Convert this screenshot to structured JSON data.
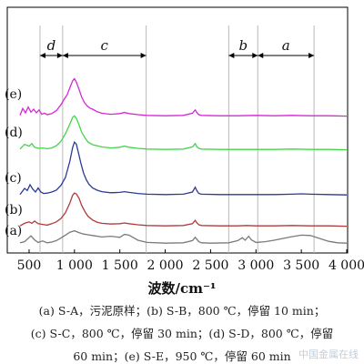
{
  "chart_data": {
    "type": "line",
    "xlabel": "波数/cm⁻¹",
    "xlim": [
      400,
      4000
    ],
    "x_ticks": [
      500,
      1000,
      1500,
      2000,
      2500,
      3000,
      3500,
      4000
    ],
    "x_tick_labels": [
      "500",
      "1 000",
      "1 500",
      "2 000",
      "2 500",
      "3 000",
      "3 500",
      "4 000"
    ],
    "ylabel": "",
    "grid": false,
    "region_labels": [
      "d",
      "c",
      "b",
      "a"
    ],
    "region_boundaries": [
      620,
      870,
      1790,
      2700,
      3020,
      3640
    ],
    "region_label_font": "italic",
    "series": [
      {
        "name": "(a)",
        "color": "#7a7a7a",
        "x": [
          400,
          450,
          480,
          520,
          560,
          600,
          650,
          700,
          750,
          800,
          850,
          900,
          950,
          1000,
          1050,
          1100,
          1150,
          1200,
          1300,
          1400,
          1500,
          1550,
          1600,
          1650,
          1700,
          1800,
          2000,
          2200,
          2300,
          2330,
          2350,
          2370,
          2400,
          2500,
          2700,
          2800,
          2850,
          2880,
          2920,
          2950,
          3000,
          3100,
          3200,
          3300,
          3400,
          3500,
          3600,
          3700,
          3800,
          3900,
          4000
        ],
        "y": [
          0.3,
          0.6,
          1.3,
          2.2,
          1.1,
          0.4,
          0.8,
          0.3,
          0.5,
          0.9,
          1.6,
          2.4,
          3.2,
          3.6,
          3.1,
          2.7,
          2.5,
          2.3,
          1.9,
          2.1,
          1.8,
          2.6,
          2.4,
          1.7,
          1.0,
          0.4,
          0.2,
          0.3,
          0.9,
          1.8,
          1.2,
          0.6,
          0.3,
          0.2,
          0.3,
          0.9,
          1.7,
          1.0,
          2.1,
          1.1,
          0.4,
          0.6,
          1.0,
          1.5,
          2.0,
          2.4,
          2.3,
          1.5,
          0.7,
          0.3,
          0.2
        ]
      },
      {
        "name": "(b)",
        "color": "#b23a3a",
        "x": [
          400,
          450,
          500,
          530,
          560,
          600,
          650,
          700,
          750,
          800,
          850,
          900,
          950,
          980,
          1000,
          1020,
          1050,
          1080,
          1120,
          1150,
          1200,
          1250,
          1300,
          1400,
          1500,
          1550,
          1600,
          1700,
          1800,
          2000,
          2200,
          2300,
          2330,
          2350,
          2370,
          2400,
          2600,
          2800,
          2900,
          3000,
          3200,
          3400,
          3600,
          3800,
          4000
        ],
        "y": [
          0.2,
          0.9,
          1.3,
          0.9,
          1.5,
          0.8,
          0.6,
          0.4,
          0.8,
          1.3,
          2.2,
          3.8,
          6.5,
          8.6,
          9.2,
          9.0,
          7.8,
          5.8,
          3.9,
          2.8,
          1.8,
          1.2,
          0.9,
          0.7,
          0.8,
          1.0,
          0.8,
          0.5,
          0.3,
          0.2,
          0.3,
          0.8,
          1.7,
          1.0,
          0.5,
          0.3,
          0.2,
          0.2,
          0.3,
          0.2,
          0.2,
          0.3,
          0.2,
          0.2,
          0.1
        ]
      },
      {
        "name": "(c)",
        "color": "#2b3a96",
        "x": [
          400,
          450,
          480,
          510,
          540,
          570,
          600,
          630,
          660,
          700,
          750,
          800,
          850,
          900,
          950,
          980,
          1000,
          1020,
          1040,
          1070,
          1100,
          1130,
          1160,
          1200,
          1250,
          1300,
          1400,
          1500,
          1550,
          1600,
          1700,
          1800,
          2000,
          2200,
          2300,
          2330,
          2350,
          2370,
          2400,
          2600,
          2800,
          3000,
          3200,
          3400,
          3500,
          3600,
          3800,
          4000
        ],
        "y": [
          0.3,
          2.0,
          1.4,
          3.0,
          1.8,
          1.0,
          2.1,
          1.0,
          0.6,
          0.7,
          1.0,
          1.5,
          2.8,
          5.0,
          9.5,
          13.2,
          14.7,
          14.2,
          12.2,
          9.0,
          6.2,
          4.4,
          3.1,
          2.1,
          1.5,
          1.1,
          0.8,
          0.9,
          1.1,
          0.9,
          0.6,
          0.4,
          0.3,
          0.4,
          1.0,
          2.3,
          1.3,
          0.6,
          0.4,
          0.3,
          0.3,
          0.3,
          0.3,
          0.4,
          0.5,
          0.4,
          0.3,
          0.2
        ]
      },
      {
        "name": "(d)",
        "color": "#43d64a",
        "x": [
          400,
          450,
          500,
          530,
          560,
          600,
          650,
          700,
          750,
          800,
          850,
          900,
          950,
          980,
          1000,
          1020,
          1050,
          1080,
          1120,
          1150,
          1200,
          1300,
          1400,
          1500,
          1550,
          1600,
          1700,
          1800,
          2000,
          2200,
          2300,
          2330,
          2350,
          2370,
          2400,
          2600,
          2800,
          3000,
          3200,
          3400,
          3600,
          3800,
          4000
        ],
        "y": [
          0.3,
          1.6,
          1.1,
          1.8,
          0.8,
          0.5,
          0.6,
          0.4,
          0.6,
          1.2,
          2.4,
          4.5,
          7.2,
          9.0,
          9.4,
          8.8,
          7.0,
          4.9,
          3.2,
          2.2,
          1.5,
          0.9,
          0.6,
          0.8,
          1.1,
          0.8,
          0.5,
          0.3,
          0.2,
          0.3,
          0.9,
          1.8,
          0.9,
          0.5,
          0.3,
          0.2,
          0.2,
          0.2,
          0.2,
          0.3,
          0.2,
          0.2,
          0.1
        ]
      },
      {
        "name": "(e)",
        "color": "#d42ad4",
        "x": [
          400,
          430,
          460,
          490,
          520,
          550,
          580,
          610,
          640,
          670,
          700,
          750,
          800,
          850,
          880,
          920,
          950,
          980,
          1000,
          1020,
          1050,
          1080,
          1110,
          1140,
          1170,
          1200,
          1250,
          1300,
          1400,
          1500,
          1550,
          1600,
          1700,
          1800,
          2000,
          2200,
          2300,
          2330,
          2350,
          2370,
          2400,
          2600,
          2800,
          3000,
          3200,
          3400,
          3600,
          3800,
          4000
        ],
        "y": [
          0.3,
          2.2,
          1.0,
          2.6,
          1.2,
          2.0,
          1.0,
          1.8,
          0.6,
          0.9,
          0.5,
          0.8,
          1.6,
          3.2,
          4.5,
          6.0,
          7.9,
          9.8,
          10.4,
          9.5,
          7.5,
          5.3,
          3.8,
          2.9,
          2.3,
          2.0,
          1.3,
          0.9,
          0.6,
          0.8,
          1.1,
          0.8,
          0.5,
          0.3,
          0.2,
          0.3,
          0.9,
          1.8,
          1.0,
          0.5,
          0.3,
          0.2,
          0.2,
          0.3,
          0.2,
          0.3,
          0.2,
          0.2,
          0.1
        ]
      }
    ]
  },
  "caption": {
    "line1": "(a) S-A，污泥原样；(b) S-B，800 ℃，停留 10 min；",
    "line2": "(c) S-C，800 ℃，停留 30 min；(d) S-D，800 ℃，停留",
    "line3": "60 min；(e) S-E，950 ℃，停留 60 min"
  },
  "watermark": "中国金属在线"
}
